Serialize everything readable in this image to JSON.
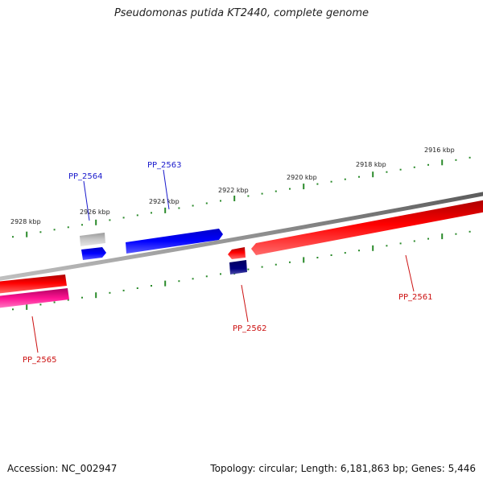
{
  "title": "Pseudomonas putida KT2440, complete genome",
  "footer": {
    "accession": "Accession: NC_002947",
    "summary": "Topology: circular; Length: 6,181,863 bp; Genes: 5,446"
  },
  "colors": {
    "backbone": "#808080",
    "tick": "#2a8a2a",
    "forward_label": "#1a1acc",
    "reverse_label": "#cc1111",
    "red": "#ff0000",
    "blue": "#0000ff",
    "navy": "#000080",
    "gray": "#c0c0c0",
    "pink": "#ff1493"
  },
  "ruler": {
    "labels": [
      "2928 kbp",
      "2926 kbp",
      "2924 kbp",
      "2922 kbp",
      "2920 kbp",
      "2918 kbp",
      "2916 kbp"
    ]
  },
  "genes": [
    {
      "id": "PP_2561",
      "color": "red",
      "label_color": "reverse_label"
    },
    {
      "id": "PP_2562",
      "color": "red",
      "label_color": "reverse_label"
    },
    {
      "id": "PP_2562_b",
      "color": "navy",
      "label_color": ""
    },
    {
      "id": "PP_2563",
      "color": "blue",
      "label_color": "forward_label"
    },
    {
      "id": "PP_2564",
      "color": "blue",
      "label_color": "forward_label"
    },
    {
      "id": "PP_2564_b",
      "color": "gray",
      "label_color": ""
    },
    {
      "id": "PP_2565",
      "color": "red",
      "label_color": "reverse_label"
    },
    {
      "id": "PP_2565_b",
      "color": "pink",
      "label_color": ""
    }
  ],
  "labels": {
    "PP_2561": "PP_2561",
    "PP_2562": "PP_2562",
    "PP_2563": "PP_2563",
    "PP_2564": "PP_2564",
    "PP_2565": "PP_2565"
  }
}
